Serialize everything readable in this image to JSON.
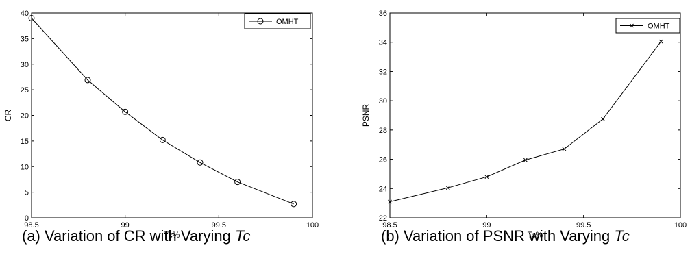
{
  "chart_data": [
    {
      "type": "line",
      "xlabel": "Tc%",
      "ylabel": "CR",
      "xlim": [
        98.5,
        100
      ],
      "ylim": [
        0,
        40
      ],
      "x_ticks": [
        "98.5",
        "99",
        "99.5",
        "100"
      ],
      "y_ticks": [
        "0",
        "5",
        "10",
        "15",
        "20",
        "25",
        "30",
        "35",
        "40"
      ],
      "grid": false,
      "legend_position": "top-right",
      "series": [
        {
          "name": "OMHT",
          "marker": "circle",
          "x": [
            98.5,
            98.8,
            99.0,
            99.2,
            99.4,
            99.6,
            99.9
          ],
          "y": [
            39.0,
            26.9,
            20.7,
            15.2,
            10.8,
            7.0,
            2.7
          ]
        }
      ],
      "caption": {
        "text": "(a) Variation of CR with Varying ",
        "italic": "Tc"
      }
    },
    {
      "type": "line",
      "xlabel": "Tc%",
      "ylabel": "PSNR",
      "xlim": [
        98.5,
        100
      ],
      "ylim": [
        22,
        36
      ],
      "x_ticks": [
        "98.5",
        "99",
        "99.5",
        "100"
      ],
      "y_ticks": [
        "22",
        "24",
        "26",
        "28",
        "30",
        "32",
        "34",
        "36"
      ],
      "grid": false,
      "legend_position": "top-right",
      "series": [
        {
          "name": "OMHT",
          "marker": "x",
          "x": [
            98.5,
            98.8,
            99.0,
            99.2,
            99.4,
            99.6,
            99.9
          ],
          "y": [
            23.1,
            24.05,
            24.8,
            25.95,
            26.7,
            28.75,
            34.05
          ]
        }
      ],
      "caption": {
        "text": "(b) Variation of PSNR with Varying ",
        "italic": "Tc"
      }
    }
  ]
}
